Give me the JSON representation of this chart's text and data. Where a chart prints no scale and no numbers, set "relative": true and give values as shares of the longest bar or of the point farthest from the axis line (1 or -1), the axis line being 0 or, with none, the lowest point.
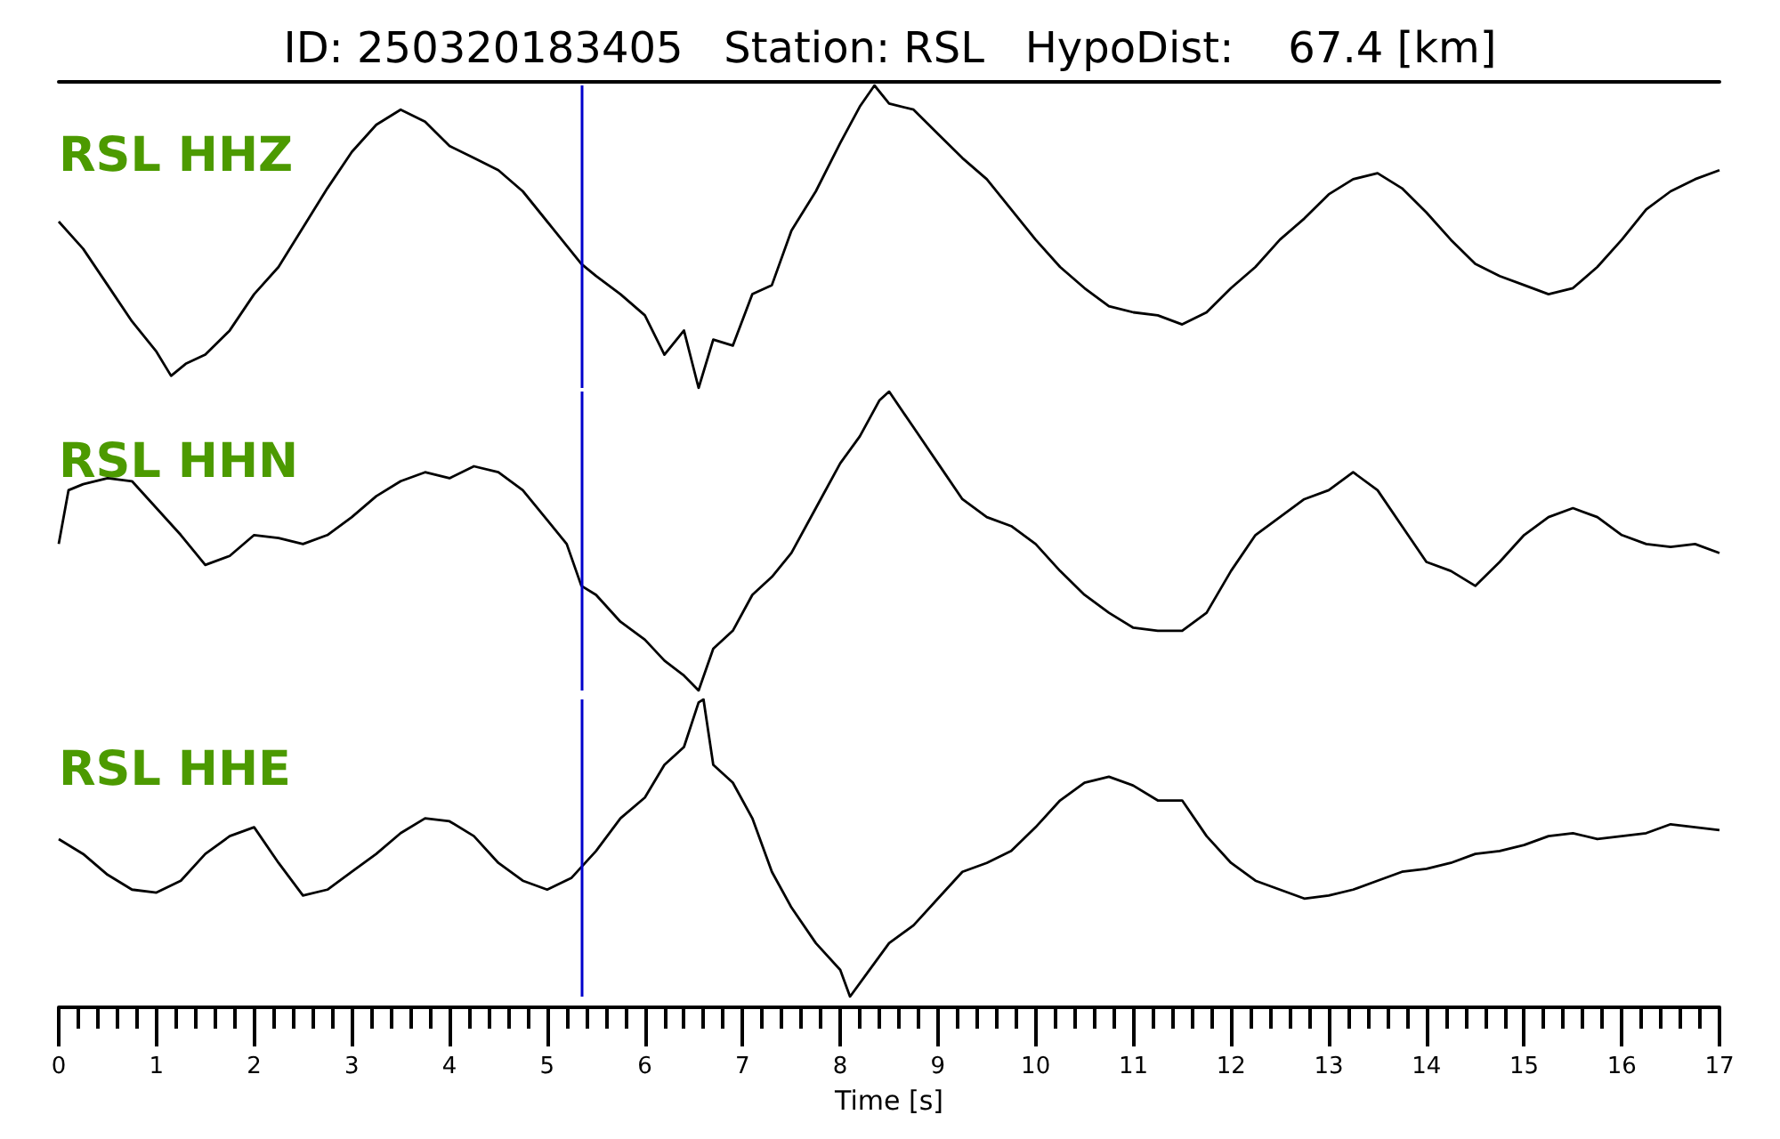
{
  "chart_data": [
    {
      "type": "line",
      "title": "ID: 250320183405   Station: RSL   HypoDist:    67.4 [km]",
      "relative": true,
      "color": "#000000",
      "x": [
        0,
        0.25,
        0.5,
        0.75,
        1.0,
        1.15,
        1.3,
        1.5,
        1.75,
        2.0,
        2.25,
        2.5,
        2.75,
        3.0,
        3.25,
        3.5,
        3.75,
        4.0,
        4.25,
        4.5,
        4.75,
        5.0,
        5.35,
        5.5,
        5.75,
        6.0,
        6.2,
        6.4,
        6.55,
        6.7,
        6.9,
        7.1,
        7.3,
        7.5,
        7.75,
        8.0,
        8.2,
        8.35,
        8.5,
        8.75,
        9.0,
        9.25,
        9.5,
        9.75,
        10.0,
        10.25,
        10.5,
        10.75,
        11.0,
        11.25,
        11.5,
        11.75,
        12.0,
        12.25,
        12.5,
        12.75,
        13.0,
        13.25,
        13.5,
        13.75,
        14.0,
        14.25,
        14.5,
        14.75,
        15.0,
        15.25,
        15.5,
        15.75,
        16.0,
        16.25,
        16.5,
        16.75,
        17.0
      ],
      "values": [
        0.55,
        0.46,
        0.34,
        0.22,
        0.12,
        0.04,
        0.08,
        0.11,
        0.19,
        0.31,
        0.4,
        0.53,
        0.66,
        0.78,
        0.87,
        0.92,
        0.88,
        0.8,
        0.76,
        0.72,
        0.65,
        0.55,
        0.41,
        0.37,
        0.31,
        0.24,
        0.11,
        0.19,
        0.0,
        0.16,
        0.14,
        0.31,
        0.34,
        0.52,
        0.65,
        0.81,
        0.93,
        1.0,
        0.94,
        0.92,
        0.84,
        0.76,
        0.69,
        0.59,
        0.49,
        0.4,
        0.33,
        0.27,
        0.25,
        0.24,
        0.21,
        0.25,
        0.33,
        0.4,
        0.49,
        0.56,
        0.64,
        0.69,
        0.71,
        0.66,
        0.58,
        0.49,
        0.41,
        0.37,
        0.34,
        0.31,
        0.33,
        0.4,
        0.49,
        0.59,
        0.65,
        0.69,
        0.72
      ],
      "xlim": [
        0,
        17
      ],
      "tick_labels": false,
      "annotations": [
        "RSL HHZ"
      ],
      "ref_lines": [
        {
          "axis": "x",
          "value": 5.35,
          "color": "#0000cc"
        }
      ]
    },
    {
      "type": "line",
      "relative": true,
      "color": "#000000",
      "x": [
        0,
        0.1,
        0.25,
        0.5,
        0.75,
        1.0,
        1.25,
        1.5,
        1.75,
        2.0,
        2.25,
        2.5,
        2.75,
        3.0,
        3.25,
        3.5,
        3.75,
        4.0,
        4.25,
        4.5,
        4.75,
        5.0,
        5.2,
        5.35,
        5.5,
        5.75,
        6.0,
        6.2,
        6.4,
        6.55,
        6.7,
        6.9,
        7.1,
        7.3,
        7.5,
        7.75,
        8.0,
        8.2,
        8.4,
        8.5,
        8.75,
        9.0,
        9.25,
        9.5,
        9.75,
        10.0,
        10.25,
        10.5,
        10.75,
        11.0,
        11.25,
        11.5,
        11.75,
        12.0,
        12.25,
        12.5,
        12.75,
        13.0,
        13.25,
        13.5,
        13.75,
        14.0,
        14.25,
        14.5,
        14.75,
        15.0,
        15.25,
        15.5,
        15.75,
        16.0,
        16.25,
        16.5,
        16.75,
        17.0
      ],
      "values": [
        0.49,
        0.67,
        0.69,
        0.71,
        0.7,
        0.61,
        0.52,
        0.42,
        0.45,
        0.52,
        0.51,
        0.49,
        0.52,
        0.58,
        0.65,
        0.7,
        0.73,
        0.71,
        0.75,
        0.73,
        0.67,
        0.57,
        0.49,
        0.35,
        0.32,
        0.23,
        0.17,
        0.1,
        0.05,
        0.0,
        0.14,
        0.2,
        0.32,
        0.38,
        0.46,
        0.61,
        0.76,
        0.85,
        0.97,
        1.0,
        0.88,
        0.76,
        0.64,
        0.58,
        0.55,
        0.49,
        0.4,
        0.32,
        0.26,
        0.21,
        0.2,
        0.2,
        0.26,
        0.4,
        0.52,
        0.58,
        0.64,
        0.67,
        0.73,
        0.67,
        0.55,
        0.43,
        0.4,
        0.35,
        0.43,
        0.52,
        0.58,
        0.61,
        0.58,
        0.52,
        0.49,
        0.48,
        0.49,
        0.46
      ],
      "xlim": [
        0,
        17
      ],
      "tick_labels": false,
      "annotations": [
        "RSL HHN"
      ],
      "ref_lines": [
        {
          "axis": "x",
          "value": 5.35,
          "color": "#0000cc"
        }
      ]
    },
    {
      "type": "line",
      "relative": true,
      "color": "#000000",
      "xlabel": "Time [s]",
      "x": [
        0,
        0.25,
        0.5,
        0.75,
        1.0,
        1.25,
        1.5,
        1.75,
        2.0,
        2.25,
        2.5,
        2.75,
        3.0,
        3.25,
        3.5,
        3.75,
        4.0,
        4.25,
        4.5,
        4.75,
        5.0,
        5.25,
        5.5,
        5.75,
        6.0,
        6.2,
        6.4,
        6.55,
        6.6,
        6.7,
        6.9,
        7.1,
        7.3,
        7.5,
        7.75,
        8.0,
        8.1,
        8.3,
        8.5,
        8.75,
        9.0,
        9.25,
        9.5,
        9.75,
        10.0,
        10.25,
        10.5,
        10.75,
        11.0,
        11.25,
        11.5,
        11.75,
        12.0,
        12.25,
        12.5,
        12.75,
        13.0,
        13.25,
        13.5,
        13.75,
        14.0,
        14.25,
        14.5,
        14.75,
        15.0,
        15.25,
        15.5,
        15.75,
        16.0,
        16.25,
        16.5,
        16.75,
        17.0
      ],
      "values": [
        0.53,
        0.48,
        0.41,
        0.36,
        0.35,
        0.39,
        0.48,
        0.54,
        0.57,
        0.45,
        0.34,
        0.36,
        0.42,
        0.48,
        0.55,
        0.6,
        0.59,
        0.54,
        0.45,
        0.39,
        0.36,
        0.4,
        0.49,
        0.6,
        0.67,
        0.78,
        0.84,
        0.99,
        1.0,
        0.78,
        0.72,
        0.6,
        0.42,
        0.3,
        0.18,
        0.09,
        0.0,
        0.09,
        0.18,
        0.24,
        0.33,
        0.42,
        0.45,
        0.49,
        0.57,
        0.66,
        0.72,
        0.74,
        0.71,
        0.66,
        0.66,
        0.54,
        0.45,
        0.39,
        0.36,
        0.33,
        0.34,
        0.36,
        0.39,
        0.42,
        0.43,
        0.45,
        0.48,
        0.49,
        0.51,
        0.54,
        0.55,
        0.53,
        0.54,
        0.55,
        0.58,
        0.57,
        0.56
      ],
      "xlim": [
        0,
        17
      ],
      "tick_labels": "x",
      "annotations": [
        "RSL HHE"
      ],
      "xticks": [
        0,
        {
          "value": 0.2,
          "label": null
        },
        {
          "value": 0.4,
          "label": null
        },
        {
          "value": 0.6,
          "label": null
        },
        {
          "value": 0.8,
          "label": null
        },
        1,
        {
          "value": 1.2,
          "label": null
        },
        {
          "value": 1.4,
          "label": null
        },
        {
          "value": 1.6,
          "label": null
        },
        {
          "value": 1.8,
          "label": null
        },
        2,
        {
          "value": 2.2,
          "label": null
        },
        {
          "value": 2.4,
          "label": null
        },
        {
          "value": 2.6,
          "label": null
        },
        {
          "value": 2.8,
          "label": null
        },
        3,
        {
          "value": 3.2,
          "label": null
        },
        {
          "value": 3.4,
          "label": null
        },
        {
          "value": 3.6,
          "label": null
        },
        {
          "value": 3.8,
          "label": null
        },
        4,
        {
          "value": 4.2,
          "label": null
        },
        {
          "value": 4.4,
          "label": null
        },
        {
          "value": 4.6,
          "label": null
        },
        {
          "value": 4.8,
          "label": null
        },
        5,
        {
          "value": 5.2,
          "label": null
        },
        {
          "value": 5.4,
          "label": null
        },
        {
          "value": 5.6,
          "label": null
        },
        {
          "value": 5.8,
          "label": null
        },
        6,
        {
          "value": 6.2,
          "label": null
        },
        {
          "value": 6.4,
          "label": null
        },
        {
          "value": 6.6,
          "label": null
        },
        {
          "value": 6.8,
          "label": null
        },
        7,
        {
          "value": 7.2,
          "label": null
        },
        {
          "value": 7.4,
          "label": null
        },
        {
          "value": 7.6,
          "label": null
        },
        {
          "value": 7.8,
          "label": null
        },
        8,
        {
          "value": 8.2,
          "label": null
        },
        {
          "value": 8.4,
          "label": null
        },
        {
          "value": 8.6,
          "label": null
        },
        {
          "value": 8.8,
          "label": null
        },
        9,
        {
          "value": 9.2,
          "label": null
        },
        {
          "value": 9.4,
          "label": null
        },
        {
          "value": 9.6,
          "label": null
        },
        {
          "value": 9.8,
          "label": null
        },
        10,
        {
          "value": 10.2,
          "label": null
        },
        {
          "value": 10.4,
          "label": null
        },
        {
          "value": 10.6,
          "label": null
        },
        {
          "value": 10.8,
          "label": null
        },
        11,
        {
          "value": 11.2,
          "label": null
        },
        {
          "value": 11.4,
          "label": null
        },
        {
          "value": 11.6,
          "label": null
        },
        {
          "value": 11.8,
          "label": null
        },
        12,
        {
          "value": 12.2,
          "label": null
        },
        {
          "value": 12.4,
          "label": null
        },
        {
          "value": 12.6,
          "label": null
        },
        {
          "value": 12.8,
          "label": null
        },
        13,
        {
          "value": 13.2,
          "label": null
        },
        {
          "value": 13.4,
          "label": null
        },
        {
          "value": 13.6,
          "label": null
        },
        {
          "value": 13.8,
          "label": null
        },
        14,
        {
          "value": 14.2,
          "label": null
        },
        {
          "value": 14.4,
          "label": null
        },
        {
          "value": 14.6,
          "label": null
        },
        {
          "value": 14.8,
          "label": null
        },
        15,
        {
          "value": 15.2,
          "label": null
        },
        {
          "value": 15.4,
          "label": null
        },
        {
          "value": 15.6,
          "label": null
        },
        {
          "value": 15.8,
          "label": null
        },
        16,
        {
          "value": 16.2,
          "label": null
        },
        {
          "value": 16.4,
          "label": null
        },
        {
          "value": 16.6,
          "label": null
        },
        {
          "value": 16.8,
          "label": null
        },
        17
      ],
      "ref_lines": [
        {
          "axis": "x",
          "value": 5.35,
          "color": "#0000cc"
        }
      ]
    }
  ]
}
